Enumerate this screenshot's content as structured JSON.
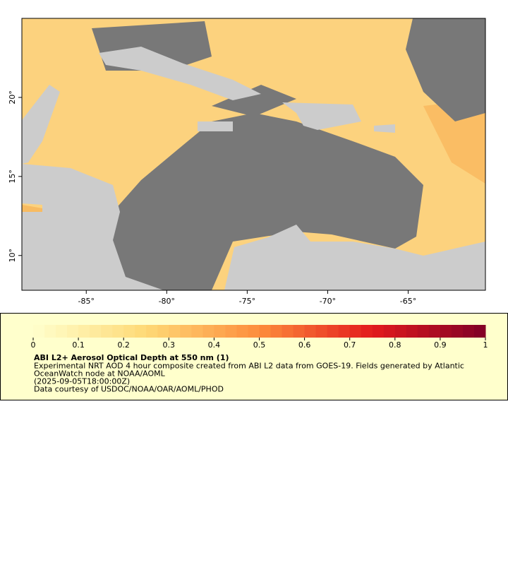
{
  "map": {
    "xlim": [
      -89,
      -60.2
    ],
    "ylim": [
      7.8,
      25
    ],
    "xticks": [
      {
        "value": -85,
        "label": "-85°"
      },
      {
        "value": -80,
        "label": "-80°"
      },
      {
        "value": -75,
        "label": "-75°"
      },
      {
        "value": -70,
        "label": "-70°"
      },
      {
        "value": -65,
        "label": "-65°"
      }
    ],
    "yticks": [
      {
        "value": 10,
        "label": "10°"
      },
      {
        "value": 15,
        "label": "15°"
      },
      {
        "value": 20,
        "label": "20°"
      }
    ]
  },
  "legend": {
    "colorbar": {
      "lim": [
        0,
        1
      ],
      "ticks": [
        0,
        0.1,
        0.2,
        0.3,
        0.4,
        0.5,
        0.6,
        0.7,
        0.8,
        0.9,
        1
      ]
    },
    "title": "ABI L2+ Aerosol Optical Depth at 550 nm (1)",
    "lines": [
      "Experimental NRT AOD 4 hour composite created from ABI L2 data from GOES-19. Fields generated by Atlantic",
      "OceanWatch node at NOAA/AOML",
      "(2025-09-05T18:00:00Z)",
      "Data courtesy of USDOC/NOAA/OAR/AOML/PHOD"
    ]
  }
}
